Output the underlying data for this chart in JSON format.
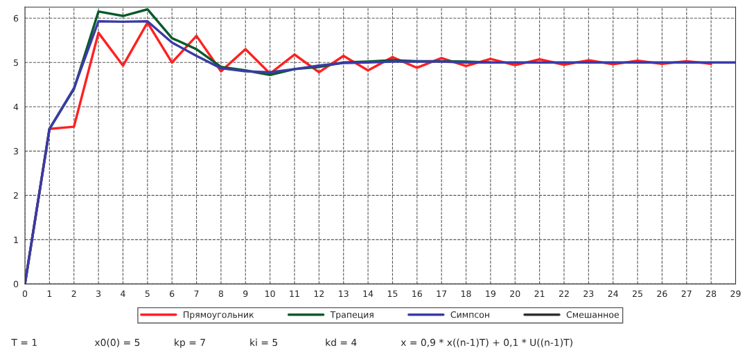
{
  "chart_data": {
    "type": "line",
    "x": [
      0,
      1,
      2,
      3,
      4,
      5,
      6,
      7,
      8,
      9,
      10,
      11,
      12,
      13,
      14,
      15,
      16,
      17,
      18,
      19,
      20,
      21,
      22,
      23,
      24,
      25,
      26,
      27,
      28,
      29
    ],
    "series": [
      {
        "name": "Прямоугольник",
        "color": "#ff2020",
        "values": [
          0,
          3.5,
          3.55,
          5.67,
          4.93,
          5.9,
          5.0,
          5.6,
          4.8,
          5.3,
          4.75,
          5.18,
          4.78,
          5.15,
          4.82,
          5.12,
          4.88,
          5.1,
          4.92,
          5.08,
          4.94,
          5.07,
          4.95,
          5.05,
          4.96,
          5.04,
          4.97,
          5.03,
          4.97,
          null
        ]
      },
      {
        "name": "Трапеция",
        "color": "#0a5a2a",
        "values": [
          0,
          3.5,
          4.4,
          6.15,
          6.05,
          6.2,
          5.55,
          5.3,
          4.9,
          4.82,
          4.72,
          4.85,
          4.9,
          5.0,
          5.02,
          5.05,
          5.03,
          5.03,
          5.02,
          5.0,
          null,
          null,
          null,
          null,
          null,
          null,
          null,
          null,
          null,
          null
        ]
      },
      {
        "name": "Симпсон",
        "color": "#3a3aa8",
        "values": [
          0,
          3.5,
          4.42,
          5.93,
          5.92,
          5.93,
          5.45,
          5.15,
          4.87,
          4.8,
          4.78,
          4.85,
          4.93,
          4.99,
          5.0,
          5.02,
          5.02,
          5.02,
          5.0,
          5.0,
          5.0,
          5.0,
          5.0,
          5.0,
          5.0,
          5.0,
          5.0,
          5.0,
          5.0,
          5.0
        ]
      },
      {
        "name": "Смешанное",
        "color": "#303030",
        "values": [
          null,
          null,
          null,
          null,
          null,
          null,
          null,
          null,
          null,
          null,
          null,
          null,
          null,
          null,
          null,
          null,
          null,
          null,
          null,
          null,
          null,
          null,
          null,
          null,
          null,
          null,
          null,
          null,
          null,
          null
        ]
      }
    ],
    "xlim": [
      0,
      29
    ],
    "xticks": [
      0,
      1,
      2,
      3,
      4,
      5,
      6,
      7,
      8,
      9,
      10,
      11,
      12,
      13,
      14,
      15,
      16,
      17,
      18,
      19,
      20,
      21,
      22,
      23,
      24,
      25,
      26,
      27,
      28,
      29
    ],
    "ylim": [
      0,
      6.25
    ],
    "yticks": [
      0,
      1,
      2,
      3,
      4,
      5,
      6
    ],
    "grid": true,
    "legend": "bottom",
    "line_style": "solid",
    "marker": "none",
    "annotations": [
      "T = 1",
      "x0(0) = 5",
      "kp = 7",
      "ki = 5",
      "kd = 4",
      "x = 0,9 * x((n-1)T) + 0,1 * U((n-1)T)"
    ]
  }
}
